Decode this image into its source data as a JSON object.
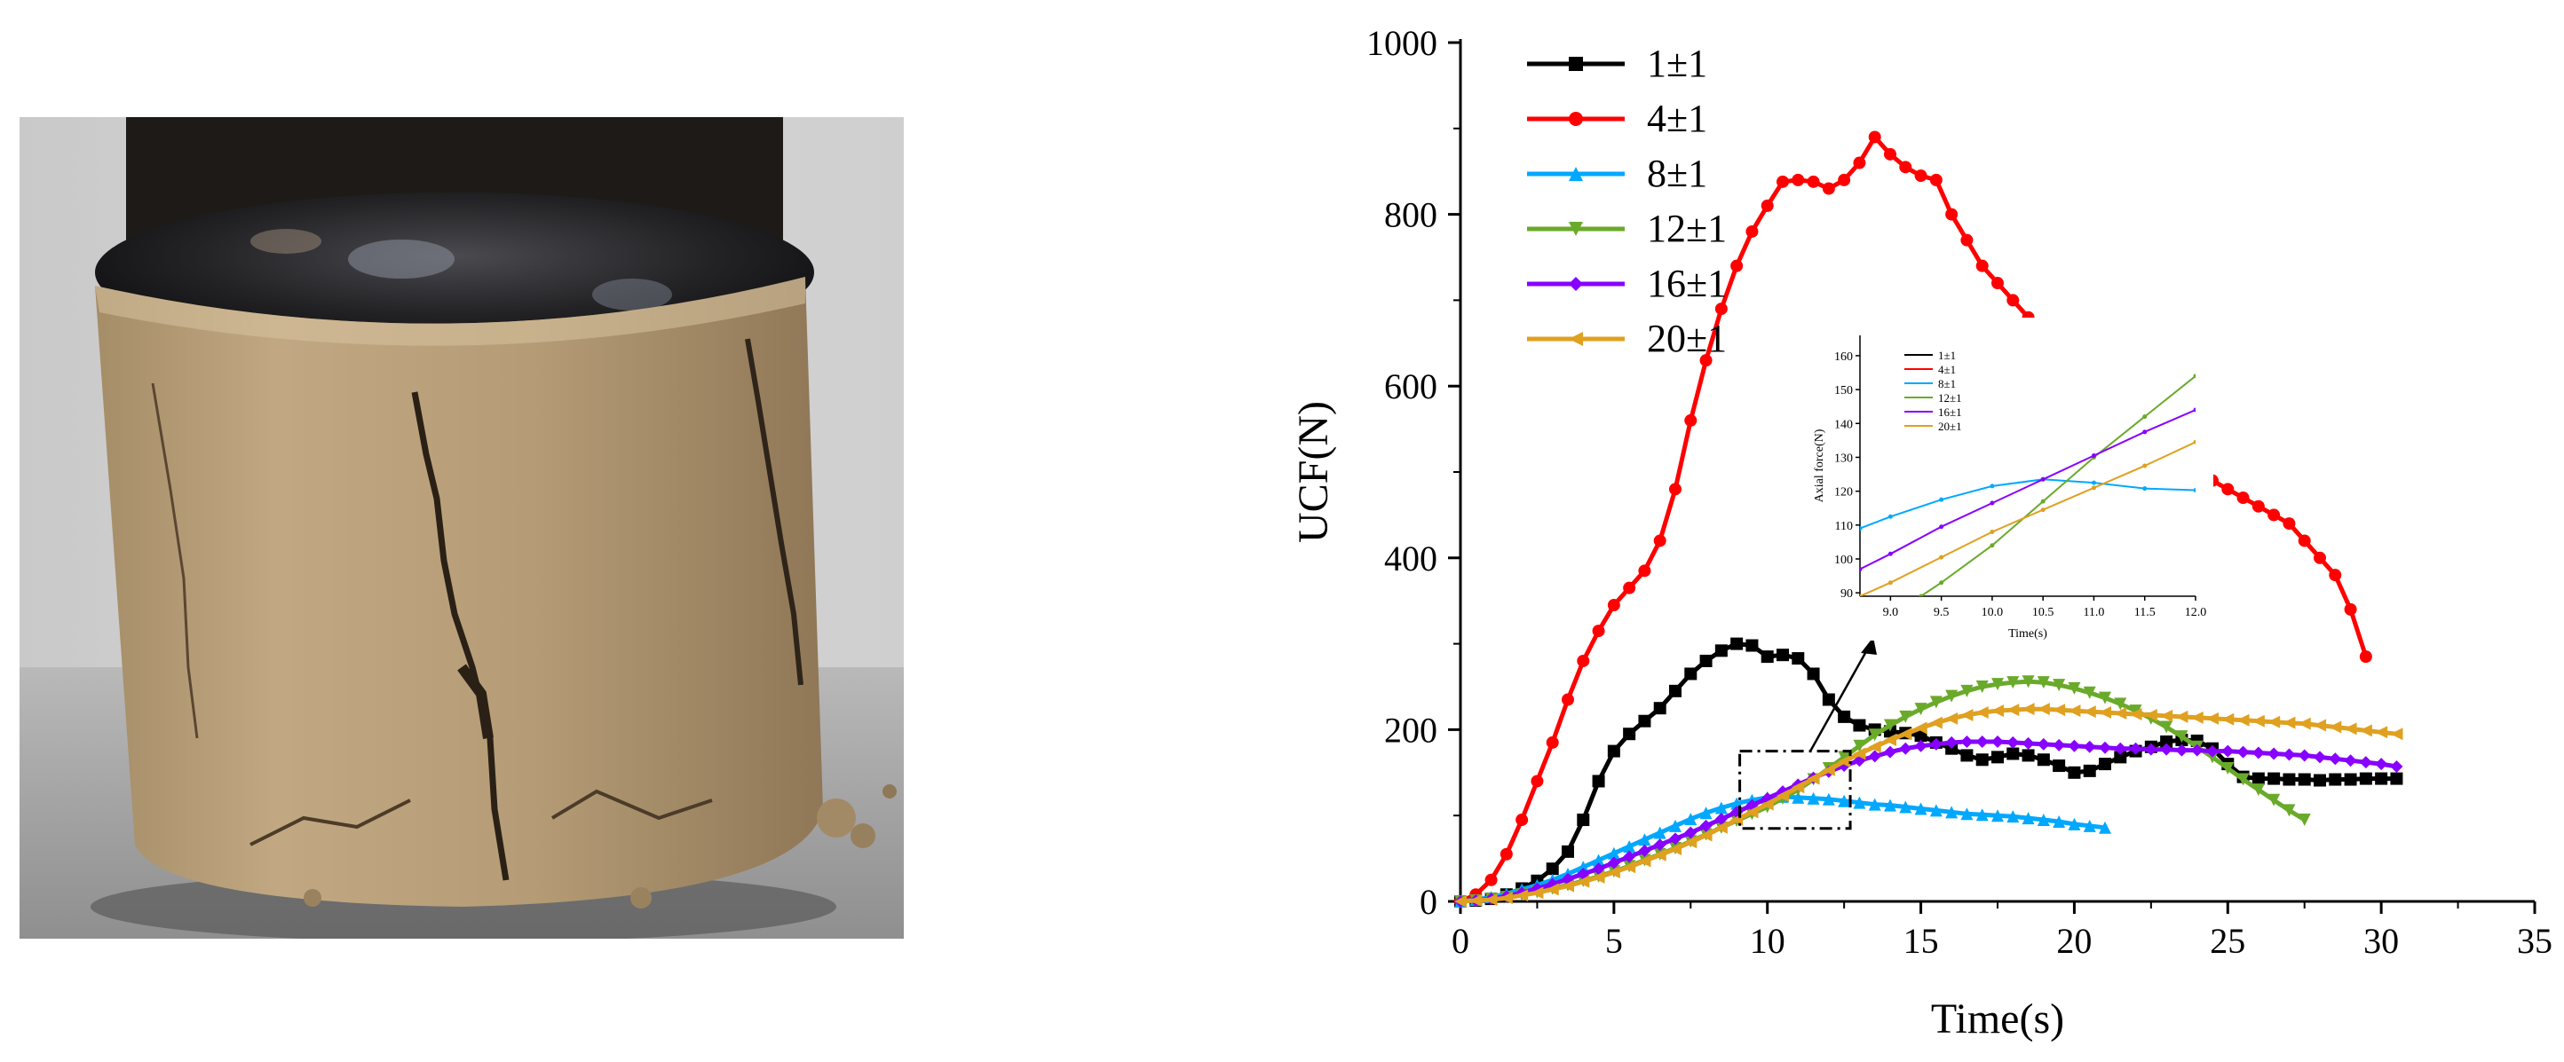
{
  "photo": {
    "description_name": "cracked-sand-specimen-photo"
  },
  "chart_data": [
    {
      "type": "line",
      "xlabel": "Time(s)",
      "ylabel": "UCF(N)",
      "xlim": [
        0,
        35
      ],
      "ylim": [
        0,
        1000
      ],
      "xticks": [
        "0",
        "5",
        "10",
        "15",
        "20",
        "25",
        "30",
        "35"
      ],
      "yticks": [
        "0",
        "200",
        "400",
        "600",
        "800",
        "1000"
      ],
      "grid": false,
      "legend_position": "top-left",
      "series": [
        {
          "name": "1±1",
          "color": "#000000",
          "marker": "square",
          "x": [
            0,
            0.5,
            1,
            1.5,
            2,
            2.5,
            3,
            3.5,
            4,
            4.5,
            5,
            5.5,
            6,
            6.5,
            7,
            7.5,
            8,
            8.5,
            9,
            9.5,
            10,
            10.5,
            11,
            11.5,
            12,
            12.5,
            13,
            13.5,
            14,
            14.5,
            15,
            15.5,
            16,
            16.5,
            17,
            17.5,
            18,
            18.5,
            19,
            19.5,
            20,
            20.5,
            21,
            21.5,
            22,
            22.5,
            23,
            23.5,
            24,
            24.5,
            25,
            25.5,
            26,
            26.5,
            27,
            27.5,
            28,
            28.5,
            29,
            29.5,
            30,
            30.5
          ],
          "y": [
            0,
            1,
            3,
            8,
            15,
            24,
            38,
            58,
            95,
            140,
            175,
            195,
            210,
            225,
            245,
            265,
            280,
            292,
            300,
            298,
            285,
            287,
            283,
            265,
            235,
            215,
            205,
            200,
            198,
            196,
            193,
            185,
            178,
            170,
            165,
            168,
            172,
            170,
            165,
            158,
            150,
            152,
            160,
            168,
            175,
            180,
            186,
            188,
            187,
            178,
            160,
            145,
            143,
            143,
            142,
            142,
            141,
            142,
            142,
            143,
            143,
            143
          ]
        },
        {
          "name": "4±1",
          "color": "#ff0000",
          "marker": "circle",
          "x": [
            0,
            0.5,
            1,
            1.5,
            2,
            2.5,
            3,
            3.5,
            4,
            4.5,
            5,
            5.5,
            6,
            6.5,
            7,
            7.5,
            8,
            8.5,
            9,
            9.5,
            10,
            10.5,
            11,
            11.5,
            12,
            12.5,
            13,
            13.5,
            14,
            14.5,
            15,
            15.5,
            16,
            16.5,
            17,
            17.5,
            18,
            18.5,
            19,
            19.5,
            20,
            20.5,
            21,
            21.5,
            22,
            22.5,
            23,
            23.5,
            24,
            24.5,
            25,
            25.5,
            26,
            26.5,
            27,
            27.5,
            28,
            28.5,
            29,
            29.5
          ],
          "y": [
            0,
            8,
            25,
            55,
            95,
            140,
            185,
            235,
            280,
            315,
            345,
            365,
            385,
            420,
            480,
            560,
            630,
            690,
            740,
            780,
            810,
            838,
            840,
            838,
            830,
            840,
            860,
            890,
            870,
            855,
            845,
            840,
            800,
            770,
            740,
            720,
            700,
            680,
            660,
            630,
            600,
            580,
            560,
            540,
            520,
            510,
            505,
            500,
            495,
            490,
            480,
            470,
            460,
            450,
            440,
            420,
            400,
            380,
            340,
            285
          ]
        },
        {
          "name": "8±1",
          "color": "#00a8ff",
          "marker": "triangle-up",
          "x": [
            0,
            0.5,
            1,
            1.5,
            2,
            2.5,
            3,
            3.5,
            4,
            4.5,
            5,
            5.5,
            6,
            6.5,
            7,
            7.5,
            8,
            8.5,
            9,
            9.5,
            10,
            10.5,
            11,
            11.5,
            12,
            12.5,
            13,
            13.5,
            14,
            14.5,
            15,
            15.5,
            16,
            16.5,
            17,
            17.5,
            18,
            18.5,
            19,
            19.5,
            20,
            20.5,
            21
          ],
          "y": [
            0,
            2,
            5,
            9,
            14,
            19,
            25,
            32,
            40,
            48,
            56,
            64,
            72,
            80,
            88,
            96,
            103,
            109,
            114,
            118,
            121,
            122,
            121,
            120,
            119,
            117,
            115,
            113,
            112,
            110,
            108,
            106,
            104,
            102,
            101,
            100,
            99,
            97,
            95,
            93,
            90,
            88,
            86
          ]
        },
        {
          "name": "12±1",
          "color": "#6aaa2a",
          "marker": "triangle-down",
          "x": [
            0,
            0.5,
            1,
            1.5,
            2,
            2.5,
            3,
            3.5,
            4,
            4.5,
            5,
            5.5,
            6,
            6.5,
            7,
            7.5,
            8,
            8.5,
            9,
            9.5,
            10,
            10.5,
            11,
            11.5,
            12,
            12.5,
            13,
            13.5,
            14,
            14.5,
            15,
            15.5,
            16,
            16.5,
            17,
            17.5,
            18,
            18.5,
            19,
            19.5,
            20,
            20.5,
            21,
            21.5,
            22,
            22.5,
            23,
            23.5,
            24,
            24.5,
            25,
            25.5,
            26,
            26.5,
            27,
            27.5
          ],
          "y": [
            0,
            1,
            3,
            5,
            8,
            11,
            15,
            19,
            24,
            29,
            35,
            41,
            48,
            55,
            62,
            70,
            78,
            86,
            94,
            102,
            110,
            120,
            130,
            142,
            155,
            168,
            181,
            194,
            205,
            215,
            224,
            232,
            239,
            245,
            250,
            253,
            255,
            256,
            255,
            252,
            248,
            243,
            237,
            230,
            222,
            213,
            203,
            192,
            180,
            168,
            155,
            142,
            130,
            118,
            106,
            95
          ]
        },
        {
          "name": "16±1",
          "color": "#8800ff",
          "marker": "diamond",
          "x": [
            0,
            0.5,
            1,
            1.5,
            2,
            2.5,
            3,
            3.5,
            4,
            4.5,
            5,
            5.5,
            6,
            6.5,
            7,
            7.5,
            8,
            8.5,
            9,
            9.5,
            10,
            10.5,
            11,
            11.5,
            12,
            12.5,
            13,
            13.5,
            14,
            14.5,
            15,
            15.5,
            16,
            16.5,
            17,
            17.5,
            18,
            18.5,
            19,
            19.5,
            20,
            20.5,
            21,
            21.5,
            22,
            22.5,
            23,
            23.5,
            24,
            24.5,
            25,
            25.5,
            26,
            26.5,
            27,
            27.5,
            28,
            28.5,
            29,
            29.5,
            30,
            30.5
          ],
          "y": [
            0,
            1,
            3,
            6,
            10,
            15,
            20,
            26,
            32,
            38,
            45,
            52,
            59,
            66,
            73,
            80,
            88,
            96,
            104,
            112,
            120,
            128,
            136,
            144,
            151,
            158,
            164,
            169,
            174,
            178,
            181,
            183,
            185,
            186,
            186,
            186,
            185,
            184,
            183,
            182,
            181,
            180,
            179,
            178,
            178,
            177,
            177,
            176,
            176,
            175,
            175,
            174,
            173,
            172,
            171,
            170,
            168,
            166,
            164,
            162,
            160,
            157
          ]
        },
        {
          "name": "20±1",
          "color": "#e0a020",
          "marker": "triangle-left",
          "x": [
            0,
            0.5,
            1,
            1.5,
            2,
            2.5,
            3,
            3.5,
            4,
            4.5,
            5,
            5.5,
            6,
            6.5,
            7,
            7.5,
            8,
            8.5,
            9,
            9.5,
            10,
            10.5,
            11,
            11.5,
            12,
            12.5,
            13,
            13.5,
            14,
            14.5,
            15,
            15.5,
            16,
            16.5,
            17,
            17.5,
            18,
            18.5,
            19,
            19.5,
            20,
            20.5,
            21,
            21.5,
            22,
            22.5,
            23,
            23.5,
            24,
            24.5,
            25,
            25.5,
            26,
            26.5,
            27,
            27.5,
            28,
            28.5,
            29,
            29.5,
            30,
            30.5
          ],
          "y": [
            0,
            1,
            2,
            4,
            7,
            10,
            14,
            18,
            23,
            28,
            34,
            40,
            47,
            54,
            61,
            69,
            77,
            86,
            95,
            104,
            113,
            123,
            133,
            143,
            153,
            163,
            172,
            180,
            188,
            195,
            202,
            208,
            213,
            217,
            220,
            222,
            223,
            224,
            224,
            223,
            222,
            221,
            220,
            219,
            218,
            217,
            216,
            215,
            214,
            213,
            212,
            211,
            210,
            209,
            208,
            207,
            205,
            203,
            201,
            199,
            197,
            195
          ]
        }
      ]
    },
    {
      "type": "line",
      "xlabel": "Time(s)",
      "ylabel": "Axial force(N)",
      "xlim": [
        8.7,
        12
      ],
      "ylim": [
        89,
        166
      ],
      "xticks": [
        "9.0",
        "9.5",
        "10.0",
        "10.5",
        "11.0",
        "11.5",
        "12.0"
      ],
      "yticks": [
        "90",
        "100",
        "110",
        "120",
        "130",
        "140",
        "150",
        "160"
      ],
      "grid": false,
      "legend_position": "top-left",
      "series": [
        {
          "name": "1±1",
          "color": "#000000",
          "x": [],
          "y": []
        },
        {
          "name": "4±1",
          "color": "#ff0000",
          "x": [],
          "y": []
        },
        {
          "name": "8±1",
          "color": "#00a8ff",
          "x": [
            8.7,
            9.0,
            9.5,
            10.0,
            10.5,
            11.0,
            11.5,
            12.0
          ],
          "y": [
            109,
            112.5,
            117.5,
            121.5,
            123.5,
            122.5,
            120.8,
            120.3
          ]
        },
        {
          "name": "12±1",
          "color": "#6aaa2a",
          "x": [
            9.3,
            9.5,
            10.0,
            10.5,
            11.0,
            11.5,
            12.0
          ],
          "y": [
            89,
            93,
            104,
            117,
            130,
            142,
            154
          ]
        },
        {
          "name": "16±1",
          "color": "#8800ff",
          "x": [
            8.7,
            9.0,
            9.5,
            10.0,
            10.5,
            11.0,
            11.5,
            12.0
          ],
          "y": [
            97,
            101.5,
            109.5,
            116.5,
            123.5,
            130.5,
            137.5,
            144
          ]
        },
        {
          "name": "20±1",
          "color": "#e0a020",
          "x": [
            8.7,
            9.0,
            9.5,
            10.0,
            10.5,
            11.0,
            11.5,
            12.0
          ],
          "y": [
            89,
            93,
            100.5,
            108,
            114.5,
            121,
            127.5,
            134.5
          ]
        }
      ]
    }
  ]
}
